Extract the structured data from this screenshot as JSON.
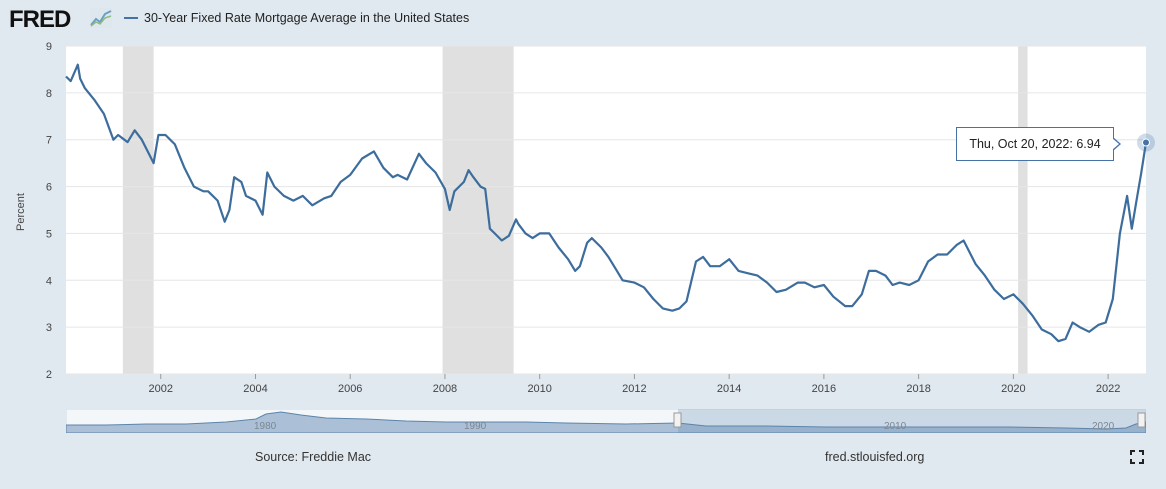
{
  "header": {
    "logo_text": "FRED",
    "logo_icon": "fred-chart-icon",
    "legend_label": "30-Year Fixed Rate Mortgage Average in the United States",
    "series_color": "#4572a7"
  },
  "tooltip": {
    "date_label": "Thu, Oct 20, 2022:",
    "value_label": "6.94"
  },
  "footer": {
    "source": "Source: Freddie Mac",
    "url": "fred.stlouisfed.org",
    "fullscreen_icon": "fullscreen-icon"
  },
  "navigator": {
    "labels": [
      "1980",
      "1990",
      "2010",
      "2020"
    ]
  },
  "chart_data": {
    "type": "line",
    "title": "30-Year Fixed Rate Mortgage Average in the United States",
    "xlabel": "",
    "ylabel": "Percent",
    "ylim": [
      2,
      9
    ],
    "xlim": [
      2000.0,
      2022.8
    ],
    "yticks": [
      2,
      3,
      4,
      5,
      6,
      7,
      8,
      9
    ],
    "xticks": [
      2002,
      2004,
      2006,
      2008,
      2010,
      2012,
      2014,
      2016,
      2018,
      2020,
      2022
    ],
    "grid": true,
    "legend": "top-left",
    "recessions": [
      [
        2001.2,
        2001.85
      ],
      [
        2007.95,
        2009.45
      ],
      [
        2020.1,
        2020.3
      ]
    ],
    "series": [
      {
        "name": "30-Year Fixed Rate Mortgage Average in the United States",
        "color": "#4572a7",
        "x": [
          2000.0,
          2000.1,
          2000.25,
          2000.3,
          2000.4,
          2000.6,
          2000.8,
          2001.0,
          2001.1,
          2001.3,
          2001.45,
          2001.6,
          2001.75,
          2001.85,
          2001.95,
          2002.1,
          2002.3,
          2002.5,
          2002.7,
          2002.9,
          2003.0,
          2003.2,
          2003.35,
          2003.45,
          2003.55,
          2003.7,
          2003.8,
          2004.0,
          2004.15,
          2004.25,
          2004.4,
          2004.6,
          2004.8,
          2005.0,
          2005.2,
          2005.45,
          2005.6,
          2005.8,
          2006.0,
          2006.25,
          2006.5,
          2006.7,
          2006.9,
          2007.0,
          2007.2,
          2007.45,
          2007.6,
          2007.8,
          2008.0,
          2008.1,
          2008.2,
          2008.4,
          2008.5,
          2008.6,
          2008.75,
          2008.85,
          2008.95,
          2009.05,
          2009.2,
          2009.35,
          2009.5,
          2009.55,
          2009.7,
          2009.85,
          2010.0,
          2010.2,
          2010.4,
          2010.6,
          2010.75,
          2010.85,
          2011.0,
          2011.1,
          2011.3,
          2011.45,
          2011.6,
          2011.75,
          2012.0,
          2012.2,
          2012.4,
          2012.6,
          2012.8,
          2012.95,
          2013.1,
          2013.3,
          2013.45,
          2013.6,
          2013.8,
          2014.0,
          2014.2,
          2014.4,
          2014.6,
          2014.8,
          2015.0,
          2015.2,
          2015.45,
          2015.6,
          2015.8,
          2016.0,
          2016.2,
          2016.45,
          2016.6,
          2016.8,
          2016.95,
          2017.1,
          2017.3,
          2017.45,
          2017.6,
          2017.8,
          2018.0,
          2018.2,
          2018.4,
          2018.6,
          2018.8,
          2018.95,
          2019.2,
          2019.4,
          2019.6,
          2019.8,
          2020.0,
          2020.2,
          2020.4,
          2020.6,
          2020.8,
          2020.95,
          2021.1,
          2021.25,
          2021.4,
          2021.6,
          2021.8,
          2021.95,
          2022.1,
          2022.25,
          2022.4,
          2022.5,
          2022.6,
          2022.7,
          2022.8
        ],
        "y": [
          8.35,
          8.25,
          8.6,
          8.3,
          8.1,
          7.85,
          7.55,
          7.0,
          7.1,
          6.95,
          7.2,
          7.0,
          6.7,
          6.5,
          7.1,
          7.1,
          6.9,
          6.4,
          6.0,
          5.9,
          5.9,
          5.7,
          5.25,
          5.5,
          6.2,
          6.1,
          5.8,
          5.7,
          5.4,
          6.3,
          6.0,
          5.8,
          5.7,
          5.8,
          5.6,
          5.75,
          5.8,
          6.1,
          6.25,
          6.6,
          6.75,
          6.4,
          6.2,
          6.25,
          6.15,
          6.7,
          6.5,
          6.3,
          5.95,
          5.5,
          5.9,
          6.1,
          6.35,
          6.2,
          6.0,
          5.95,
          5.1,
          5.0,
          4.85,
          4.95,
          5.3,
          5.2,
          5.0,
          4.9,
          5.0,
          5.0,
          4.7,
          4.45,
          4.2,
          4.3,
          4.8,
          4.9,
          4.7,
          4.5,
          4.25,
          4.0,
          3.95,
          3.85,
          3.6,
          3.4,
          3.35,
          3.4,
          3.55,
          4.4,
          4.5,
          4.3,
          4.3,
          4.45,
          4.2,
          4.15,
          4.1,
          3.95,
          3.75,
          3.8,
          3.95,
          3.95,
          3.85,
          3.9,
          3.65,
          3.45,
          3.45,
          3.7,
          4.2,
          4.2,
          4.1,
          3.9,
          3.95,
          3.9,
          4.0,
          4.4,
          4.55,
          4.55,
          4.75,
          4.85,
          4.35,
          4.1,
          3.8,
          3.6,
          3.7,
          3.5,
          3.25,
          2.95,
          2.85,
          2.7,
          2.75,
          3.1,
          3.0,
          2.9,
          3.05,
          3.1,
          3.6,
          5.0,
          5.8,
          5.1,
          5.7,
          6.3,
          6.94
        ]
      }
    ]
  }
}
